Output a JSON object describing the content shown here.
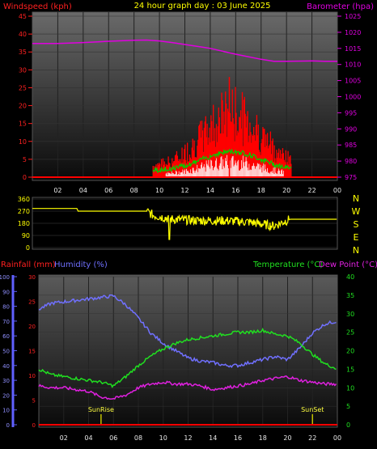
{
  "header": {
    "title": "24 hour graph day : 03 June 2025",
    "left_label": "Windspeed (kph)",
    "right_label": "Barometer (hpa)"
  },
  "colors": {
    "wind": "#ff0000",
    "gust": "#00d000",
    "white": "#ffffff",
    "barometer": "#e000e0",
    "direction": "#ffff00",
    "rainfall": "#ff0000",
    "humidity": "#7070ff",
    "temperature": "#20e020",
    "dewpoint": "#e020e0"
  },
  "chart_data": [
    {
      "type": "line",
      "title": "24 hour graph day : 03 June 2025",
      "x_tick_labels": [
        "02",
        "04",
        "06",
        "08",
        "10",
        "12",
        "14",
        "16",
        "18",
        "20",
        "22",
        "00"
      ],
      "x_range_hours": [
        0,
        24
      ],
      "left_axis": {
        "label": "Windspeed (kph)",
        "ticks": [
          0,
          5,
          10,
          15,
          20,
          25,
          30,
          35,
          40,
          45
        ],
        "range": [
          0,
          45
        ]
      },
      "right_axis": {
        "label": "Barometer (hpa)",
        "ticks": [
          975,
          980,
          985,
          990,
          995,
          1000,
          1005,
          1010,
          1015,
          1020,
          1025
        ],
        "range": [
          975,
          1025
        ]
      },
      "series": [
        {
          "name": "Windspeed (kph)",
          "style": "bars",
          "wind_active_hours": [
            9.5,
            20.4
          ],
          "peak_kph": 28
        },
        {
          "name": "Barometer (hpa)",
          "x": [
            0,
            2,
            4,
            6,
            8,
            9,
            10,
            11,
            12,
            14,
            16,
            18,
            19,
            20,
            22,
            23,
            24
          ],
          "y": [
            1016.5,
            1016.5,
            1016.8,
            1017.2,
            1017.5,
            1017.6,
            1017.3,
            1016.8,
            1016.2,
            1015,
            1013.2,
            1011.6,
            1011,
            1011,
            1011.1,
            1011,
            1011
          ]
        }
      ]
    },
    {
      "type": "line",
      "title": "",
      "left_axis": {
        "ticks": [
          0,
          90,
          180,
          270,
          360
        ],
        "range": [
          0,
          360
        ]
      },
      "right_axis": {
        "ticks": [
          "N",
          "W",
          "S",
          "E",
          "N"
        ]
      },
      "series": [
        {
          "name": "Wind direction",
          "x": [
            0,
            3.5,
            3.6,
            9,
            9.5,
            11,
            13,
            15,
            17,
            19,
            20,
            20.3,
            24
          ],
          "y": [
            290,
            290,
            270,
            270,
            240,
            210,
            200,
            200,
            190,
            160,
            200,
            210,
            210
          ]
        }
      ]
    },
    {
      "type": "line",
      "title": "",
      "legend": [
        "Rainfall (mm)",
        "Humidity (%)",
        "Temperature (°C)",
        "Dew Point (°C)"
      ],
      "left_outer_axis": {
        "label": "Rainfall (mm)",
        "ticks": [
          0,
          10,
          20,
          30,
          40,
          50,
          60,
          70,
          80,
          90,
          100
        ],
        "range": [
          0,
          100
        ]
      },
      "left_inner_axis": {
        "label": "Humidity (%)",
        "ticks": [
          0,
          5,
          10,
          15,
          20,
          25,
          30
        ],
        "range": [
          0,
          30
        ]
      },
      "right_axis": {
        "label": "Temperature (°C)",
        "ticks": [
          0,
          5,
          10,
          15,
          20,
          25,
          30,
          35,
          40
        ],
        "range": [
          0,
          40
        ]
      },
      "annotations": [
        {
          "label": "SunRise",
          "hour": 5
        },
        {
          "label": "SunSet",
          "hour": 22
        }
      ],
      "series": [
        {
          "name": "Rainfall (mm)",
          "x": [
            0,
            24
          ],
          "y": [
            0,
            0
          ]
        },
        {
          "name": "Humidity (%)",
          "x": [
            0,
            1,
            2,
            3,
            4,
            5,
            6,
            7,
            8,
            9,
            10,
            11,
            12,
            13,
            14,
            15,
            16,
            17,
            18,
            19,
            20,
            21,
            22,
            23,
            24
          ],
          "y": [
            78,
            82,
            83,
            84,
            85,
            86,
            87,
            81,
            72,
            62,
            55,
            50,
            45,
            43,
            42,
            40,
            40,
            42,
            44,
            46,
            44,
            52,
            62,
            68,
            70
          ]
        },
        {
          "name": "Temperature (°C)",
          "x": [
            0,
            1,
            2,
            3,
            4,
            5,
            6,
            7,
            8,
            9,
            10,
            11,
            12,
            13,
            14,
            15,
            16,
            17,
            18,
            19,
            20,
            21,
            22,
            23,
            24
          ],
          "y": [
            15,
            13.5,
            13,
            12.5,
            12,
            11.5,
            10.5,
            13,
            16,
            18.5,
            20.5,
            22,
            23,
            23.5,
            24,
            24.5,
            25,
            25,
            25.5,
            24.5,
            24,
            22,
            19,
            16.5,
            15
          ]
        },
        {
          "name": "Dew Point (°C)",
          "x": [
            0,
            1,
            2,
            3,
            4,
            5,
            6,
            7,
            8,
            9,
            10,
            11,
            12,
            13,
            14,
            15,
            16,
            17,
            18,
            19,
            20,
            21,
            22,
            23,
            24
          ],
          "y": [
            10.5,
            10,
            10,
            9.5,
            9,
            7.5,
            7,
            8,
            10,
            11,
            11.5,
            11,
            11,
            10.5,
            9.5,
            10,
            10.5,
            11,
            12,
            12.5,
            13,
            12,
            11.5,
            11,
            11
          ]
        }
      ]
    }
  ],
  "panel3_labels": {
    "rainfall": "Rainfall (mm)",
    "humidity": "Humidity (%)",
    "temperature": "Temperature (°C)",
    "dewpoint": "Dew Point (°C)"
  }
}
